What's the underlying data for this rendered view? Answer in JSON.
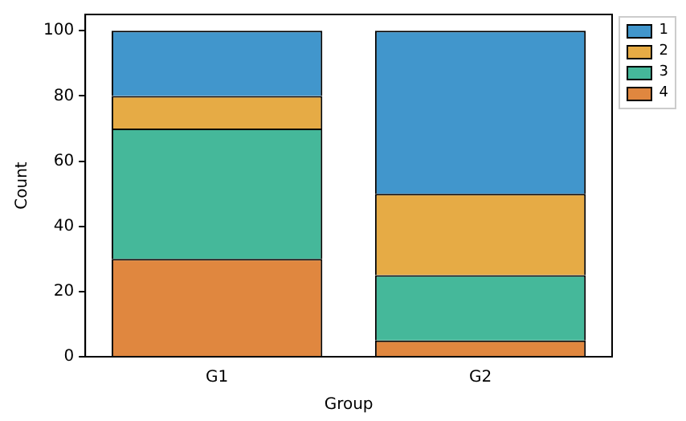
{
  "chart_data": {
    "type": "bar",
    "stacked": true,
    "xlabel": "Group",
    "ylabel": "Count",
    "categories": [
      "G1",
      "G2"
    ],
    "series": [
      {
        "name": "4",
        "color": "#e0873f",
        "values": [
          30,
          5
        ]
      },
      {
        "name": "3",
        "color": "#45b89a",
        "values": [
          40,
          20
        ]
      },
      {
        "name": "2",
        "color": "#e6ab45",
        "values": [
          10,
          25
        ]
      },
      {
        "name": "1",
        "color": "#4196cc",
        "values": [
          20,
          50
        ]
      }
    ],
    "ylim": [
      0,
      105
    ],
    "yticks": [
      0,
      20,
      40,
      60,
      80,
      100
    ],
    "grid": false,
    "legend": "top right"
  }
}
